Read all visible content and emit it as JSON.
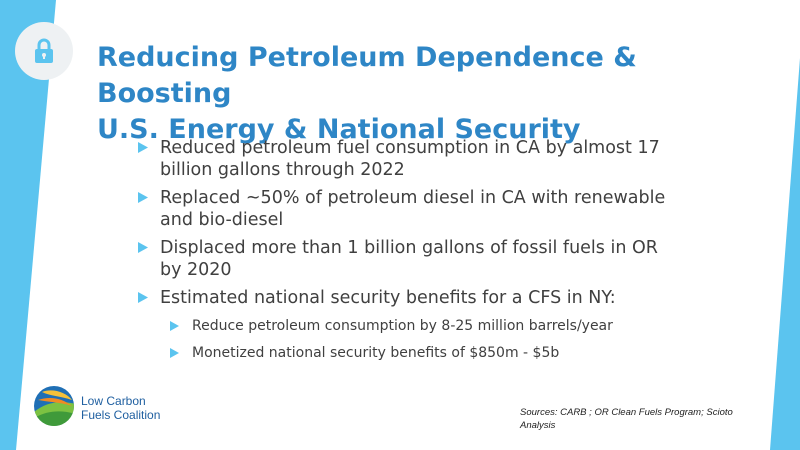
{
  "colors": {
    "accent": "#5bc4ef",
    "title": "#2e86c6",
    "body_text": "#404040",
    "bullet_marker": "#5bc4ef"
  },
  "header": {
    "icon": "lock-icon",
    "title_line1": "Reducing Petroleum Dependence & Boosting",
    "title_line2": "U.S. Energy & National Security"
  },
  "bullets": [
    {
      "line1": "Reduced petroleum fuel consumption in CA by almost 17",
      "line2": "billion gallons through 2022"
    },
    {
      "line1": "Replaced ~50% of petroleum diesel in CA with renewable",
      "line2": "and bio-diesel"
    },
    {
      "line1": "Displaced more than 1 billion gallons of fossil fuels in OR",
      "line2": "by 2020"
    },
    {
      "line1": "Estimated national security benefits for a CFS in NY:",
      "line2": ""
    }
  ],
  "sub_bullets": [
    {
      "text": "Reduce petroleum consumption by 8-25 million barrels/year"
    },
    {
      "text": "Monetized national security benefits of $850m - $5b"
    }
  ],
  "logo": {
    "line1": "Low Carbon",
    "line2": "Fuels Coalition"
  },
  "sources": {
    "line1": "Sources: CARB ; OR Clean Fuels Program; Scioto",
    "line2": "Analysis"
  }
}
